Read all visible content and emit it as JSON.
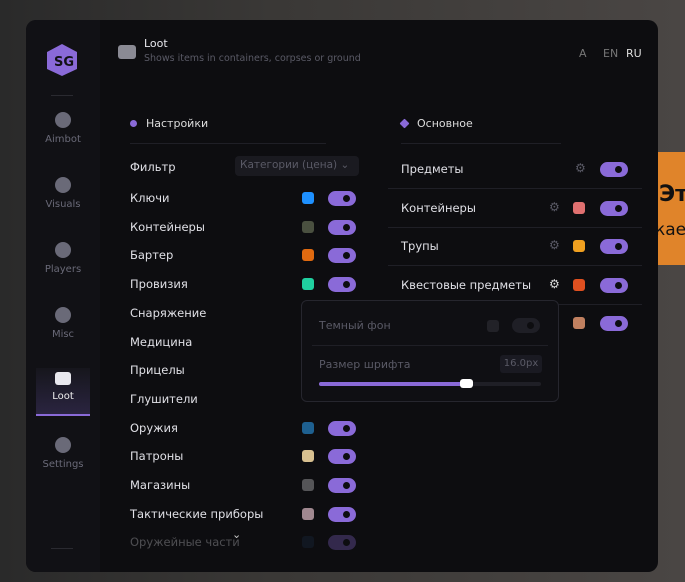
{
  "background_text": [
    "Эт",
    "кае"
  ],
  "sidebar": {
    "items": [
      {
        "label": "Aimbot",
        "icon": "alien-icon"
      },
      {
        "label": "Visuals",
        "icon": "vr-icon"
      },
      {
        "label": "Players",
        "icon": "users-icon"
      },
      {
        "label": "Misc",
        "icon": "dots-icon"
      },
      {
        "label": "Loot",
        "icon": "briefcase-icon",
        "active": true
      },
      {
        "label": "Settings",
        "icon": "list-icon"
      }
    ]
  },
  "header": {
    "title": "Loot",
    "subtitle": "Shows items in containers, corpses or ground",
    "langs": [
      "EN",
      "RU"
    ],
    "active_lang": "RU"
  },
  "left": {
    "title": "Настройки",
    "filter_label": "Фильтр",
    "filter_value": "Категории (цена)",
    "items": [
      {
        "label": "Ключи",
        "color": "#1e90ff",
        "on": true
      },
      {
        "label": "Контейнеры",
        "color": "#4a5040",
        "on": true
      },
      {
        "label": "Бартер",
        "color": "#e06a10",
        "on": true
      },
      {
        "label": "Провизия",
        "color": "#20d0a0",
        "on": true
      },
      {
        "label": "Снаряжение"
      },
      {
        "label": "Медицина"
      },
      {
        "label": "Прицелы"
      },
      {
        "label": "Глушители"
      },
      {
        "label": "Оружия",
        "color": "#1e6090",
        "on": true
      },
      {
        "label": "Патроны",
        "color": "#d8c090",
        "on": true
      },
      {
        "label": "Магазины",
        "color": "#555558",
        "on": true
      },
      {
        "label": "Тактические приборы",
        "color": "#a08890",
        "on": true
      },
      {
        "label": "Оружейные части",
        "color": "#1a3048",
        "on": true
      }
    ]
  },
  "right": {
    "title": "Основное",
    "items": [
      {
        "label": "Предметы",
        "on": true
      },
      {
        "label": "Контейнеры",
        "color": "#e07070",
        "on": true
      },
      {
        "label": "Трупы",
        "color": "#f0a020",
        "on": true
      },
      {
        "label": "Квестовые предметы",
        "color": "#e05020",
        "on": true
      },
      {
        "label": "",
        "color": "#c08060",
        "on": true
      }
    ]
  },
  "popup": {
    "dark_bg_label": "Темный фон",
    "dark_bg_on": false,
    "font_size_label": "Размер шрифта",
    "font_size_value": "16.0px",
    "font_size_fraction": 0.66
  }
}
